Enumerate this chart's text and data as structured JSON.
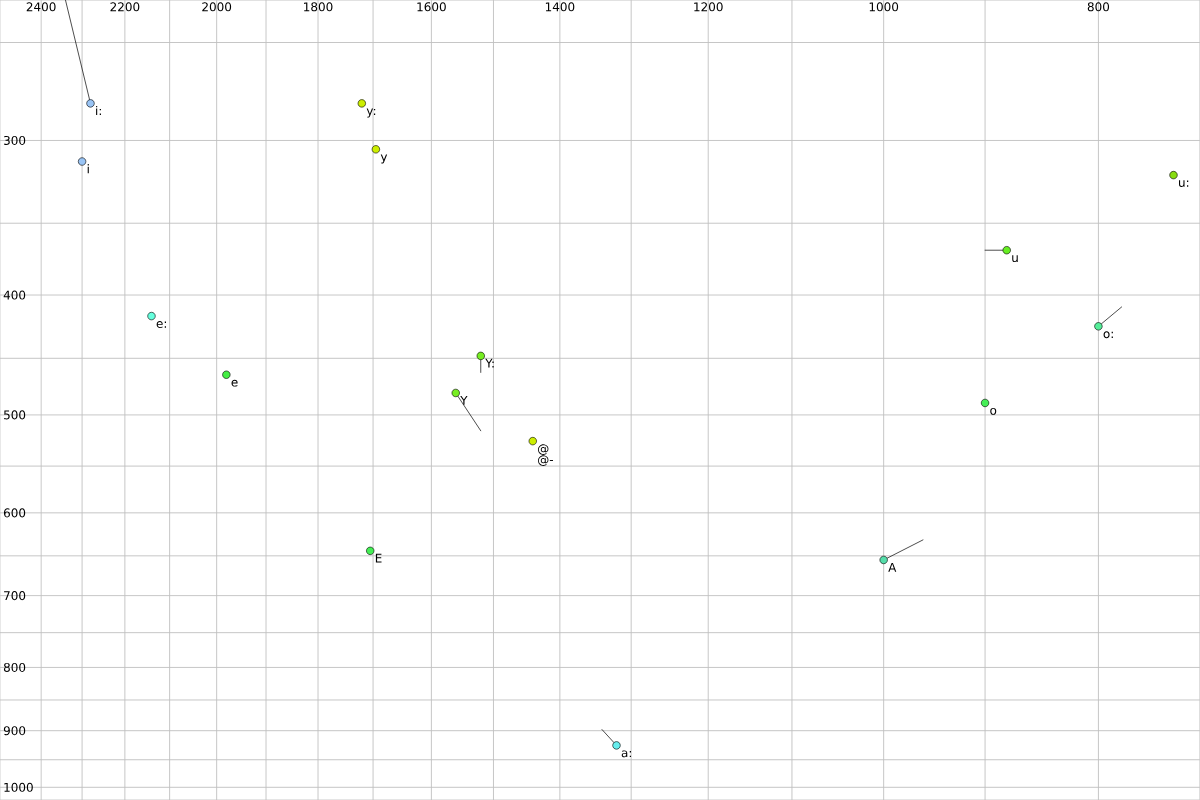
{
  "chart_data": {
    "type": "scatter",
    "log": "xy",
    "grid": true,
    "marker": "circle",
    "xlim": [
      2505,
      720
    ],
    "ylim": [
      1024,
      231
    ],
    "xticks": [
      2400,
      {
        "value": 2300,
        "label": null
      },
      2200,
      {
        "value": 2100,
        "label": null
      },
      2000,
      {
        "value": 1900,
        "label": null
      },
      1800,
      {
        "value": 1700,
        "label": null
      },
      1600,
      {
        "value": 1500,
        "label": null
      },
      1400,
      {
        "value": 1300,
        "label": null
      },
      1200,
      {
        "value": 1100,
        "label": null
      },
      1000,
      {
        "value": 900,
        "label": null
      },
      800
    ],
    "yticks": [
      {
        "value": 250,
        "label": null
      },
      300,
      {
        "value": 350,
        "label": null
      },
      400,
      {
        "value": 450,
        "label": null
      },
      500,
      {
        "value": 550,
        "label": null
      },
      600,
      {
        "value": 650,
        "label": null
      },
      700,
      {
        "value": 750,
        "label": null
      },
      800,
      {
        "value": 850,
        "label": null
      },
      900,
      {
        "value": 950,
        "label": null
      },
      1000
    ],
    "series": [
      {
        "x": [
          2280,
          2300,
          2140,
          1980,
          1720,
          1695,
          1520,
          1560,
          1440,
          1705,
          1320,
          1000,
          900,
          800,
          880,
          740
        ],
        "values": [
          280,
          312,
          416,
          464,
          280,
          305,
          448,
          480,
          525,
          644,
          925,
          655,
          489,
          424,
          368,
          320
        ],
        "colors": [
          "#99c4f5",
          "#99c4f5",
          "#66ffdd",
          "#44ee44",
          "#ccee00",
          "#ccee00",
          "#77ee22",
          "#77ee22",
          "#ccee00",
          "#44ee55",
          "#66eeee",
          "#55ddaa",
          "#44ee55",
          "#55ee99",
          "#66ee22",
          "#88dd11"
        ]
      },
      {
        "type": "line",
        "marker": "none",
        "color": "#000000",
        "x": [
          2280,
          2340
        ],
        "values": [
          280,
          231
        ]
      },
      {
        "type": "line",
        "marker": "none",
        "color": "#000000",
        "x": [
          1520,
          1520
        ],
        "values": [
          448,
          462
        ]
      },
      {
        "type": "line",
        "marker": "none",
        "color": "#000000",
        "x": [
          1560,
          1520
        ],
        "values": [
          480,
          515
        ]
      },
      {
        "type": "line",
        "marker": "none",
        "color": "#000000",
        "x": [
          1320,
          1340
        ],
        "values": [
          925,
          898
        ]
      },
      {
        "type": "line",
        "marker": "none",
        "color": "#000000",
        "x": [
          1000,
          960
        ],
        "values": [
          655,
          631
        ]
      },
      {
        "type": "line",
        "marker": "none",
        "color": "#000000",
        "x": [
          800,
          781
        ],
        "values": [
          424,
          409
        ]
      },
      {
        "type": "line",
        "marker": "none",
        "color": "#000000",
        "x": [
          880,
          900
        ],
        "values": [
          368,
          368
        ]
      }
    ],
    "annotations": [
      {
        "text": "i:",
        "x": 2280,
        "y": 280
      },
      {
        "text": "i",
        "x": 2300,
        "y": 312
      },
      {
        "text": "e:",
        "x": 2140,
        "y": 416
      },
      {
        "text": "e",
        "x": 1980,
        "y": 464
      },
      {
        "text": "y:",
        "x": 1720,
        "y": 280
      },
      {
        "text": "y",
        "x": 1695,
        "y": 305
      },
      {
        "text": "Y:",
        "x": 1520,
        "y": 448
      },
      {
        "text": "Y",
        "x": 1560,
        "y": 480
      },
      {
        "text": "@",
        "x": 1440,
        "y": 525
      },
      {
        "text": "@-",
        "x": 1440,
        "y": 525
      },
      {
        "text": "E",
        "x": 1705,
        "y": 644
      },
      {
        "text": "a:",
        "x": 1320,
        "y": 925
      },
      {
        "text": "A",
        "x": 1000,
        "y": 655
      },
      {
        "text": "o",
        "x": 900,
        "y": 489
      },
      {
        "text": "o:",
        "x": 800,
        "y": 424
      },
      {
        "text": "u",
        "x": 880,
        "y": 368
      },
      {
        "text": "u:",
        "x": 740,
        "y": 320
      }
    ]
  }
}
